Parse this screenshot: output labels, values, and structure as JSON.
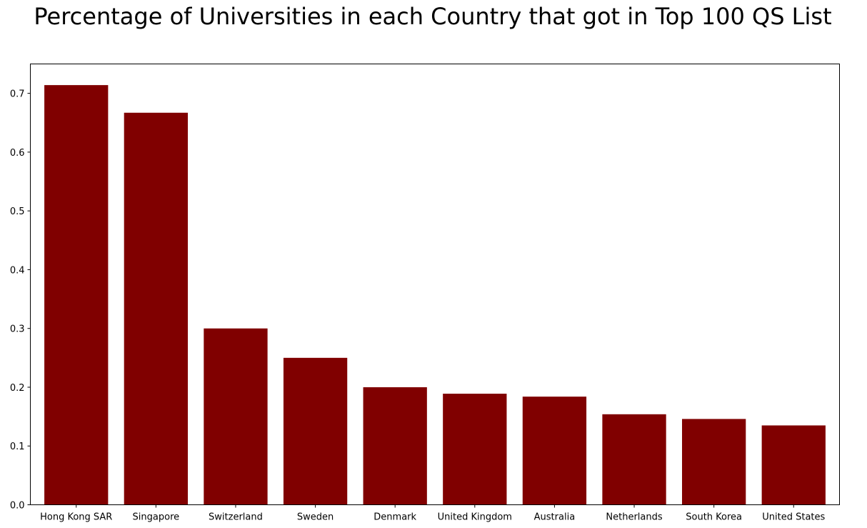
{
  "chart_data": {
    "type": "bar",
    "title": "Percentage of Universities in each Country that got in Top 100 QS List",
    "xlabel": "",
    "ylabel": "",
    "categories": [
      "Hong Kong SAR",
      "Singapore",
      "Switzerland",
      "Sweden",
      "Denmark",
      "United Kingdom",
      "Australia",
      "Netherlands",
      "South Korea",
      "United States"
    ],
    "values": [
      0.714,
      0.667,
      0.3,
      0.25,
      0.2,
      0.189,
      0.184,
      0.154,
      0.146,
      0.135
    ],
    "yticks": [
      "0.0",
      "0.1",
      "0.2",
      "0.3",
      "0.4",
      "0.5",
      "0.6",
      "0.7"
    ],
    "ylim": [
      0,
      0.75
    ],
    "bar_color": "#800000",
    "grid": false,
    "legend": "none"
  }
}
